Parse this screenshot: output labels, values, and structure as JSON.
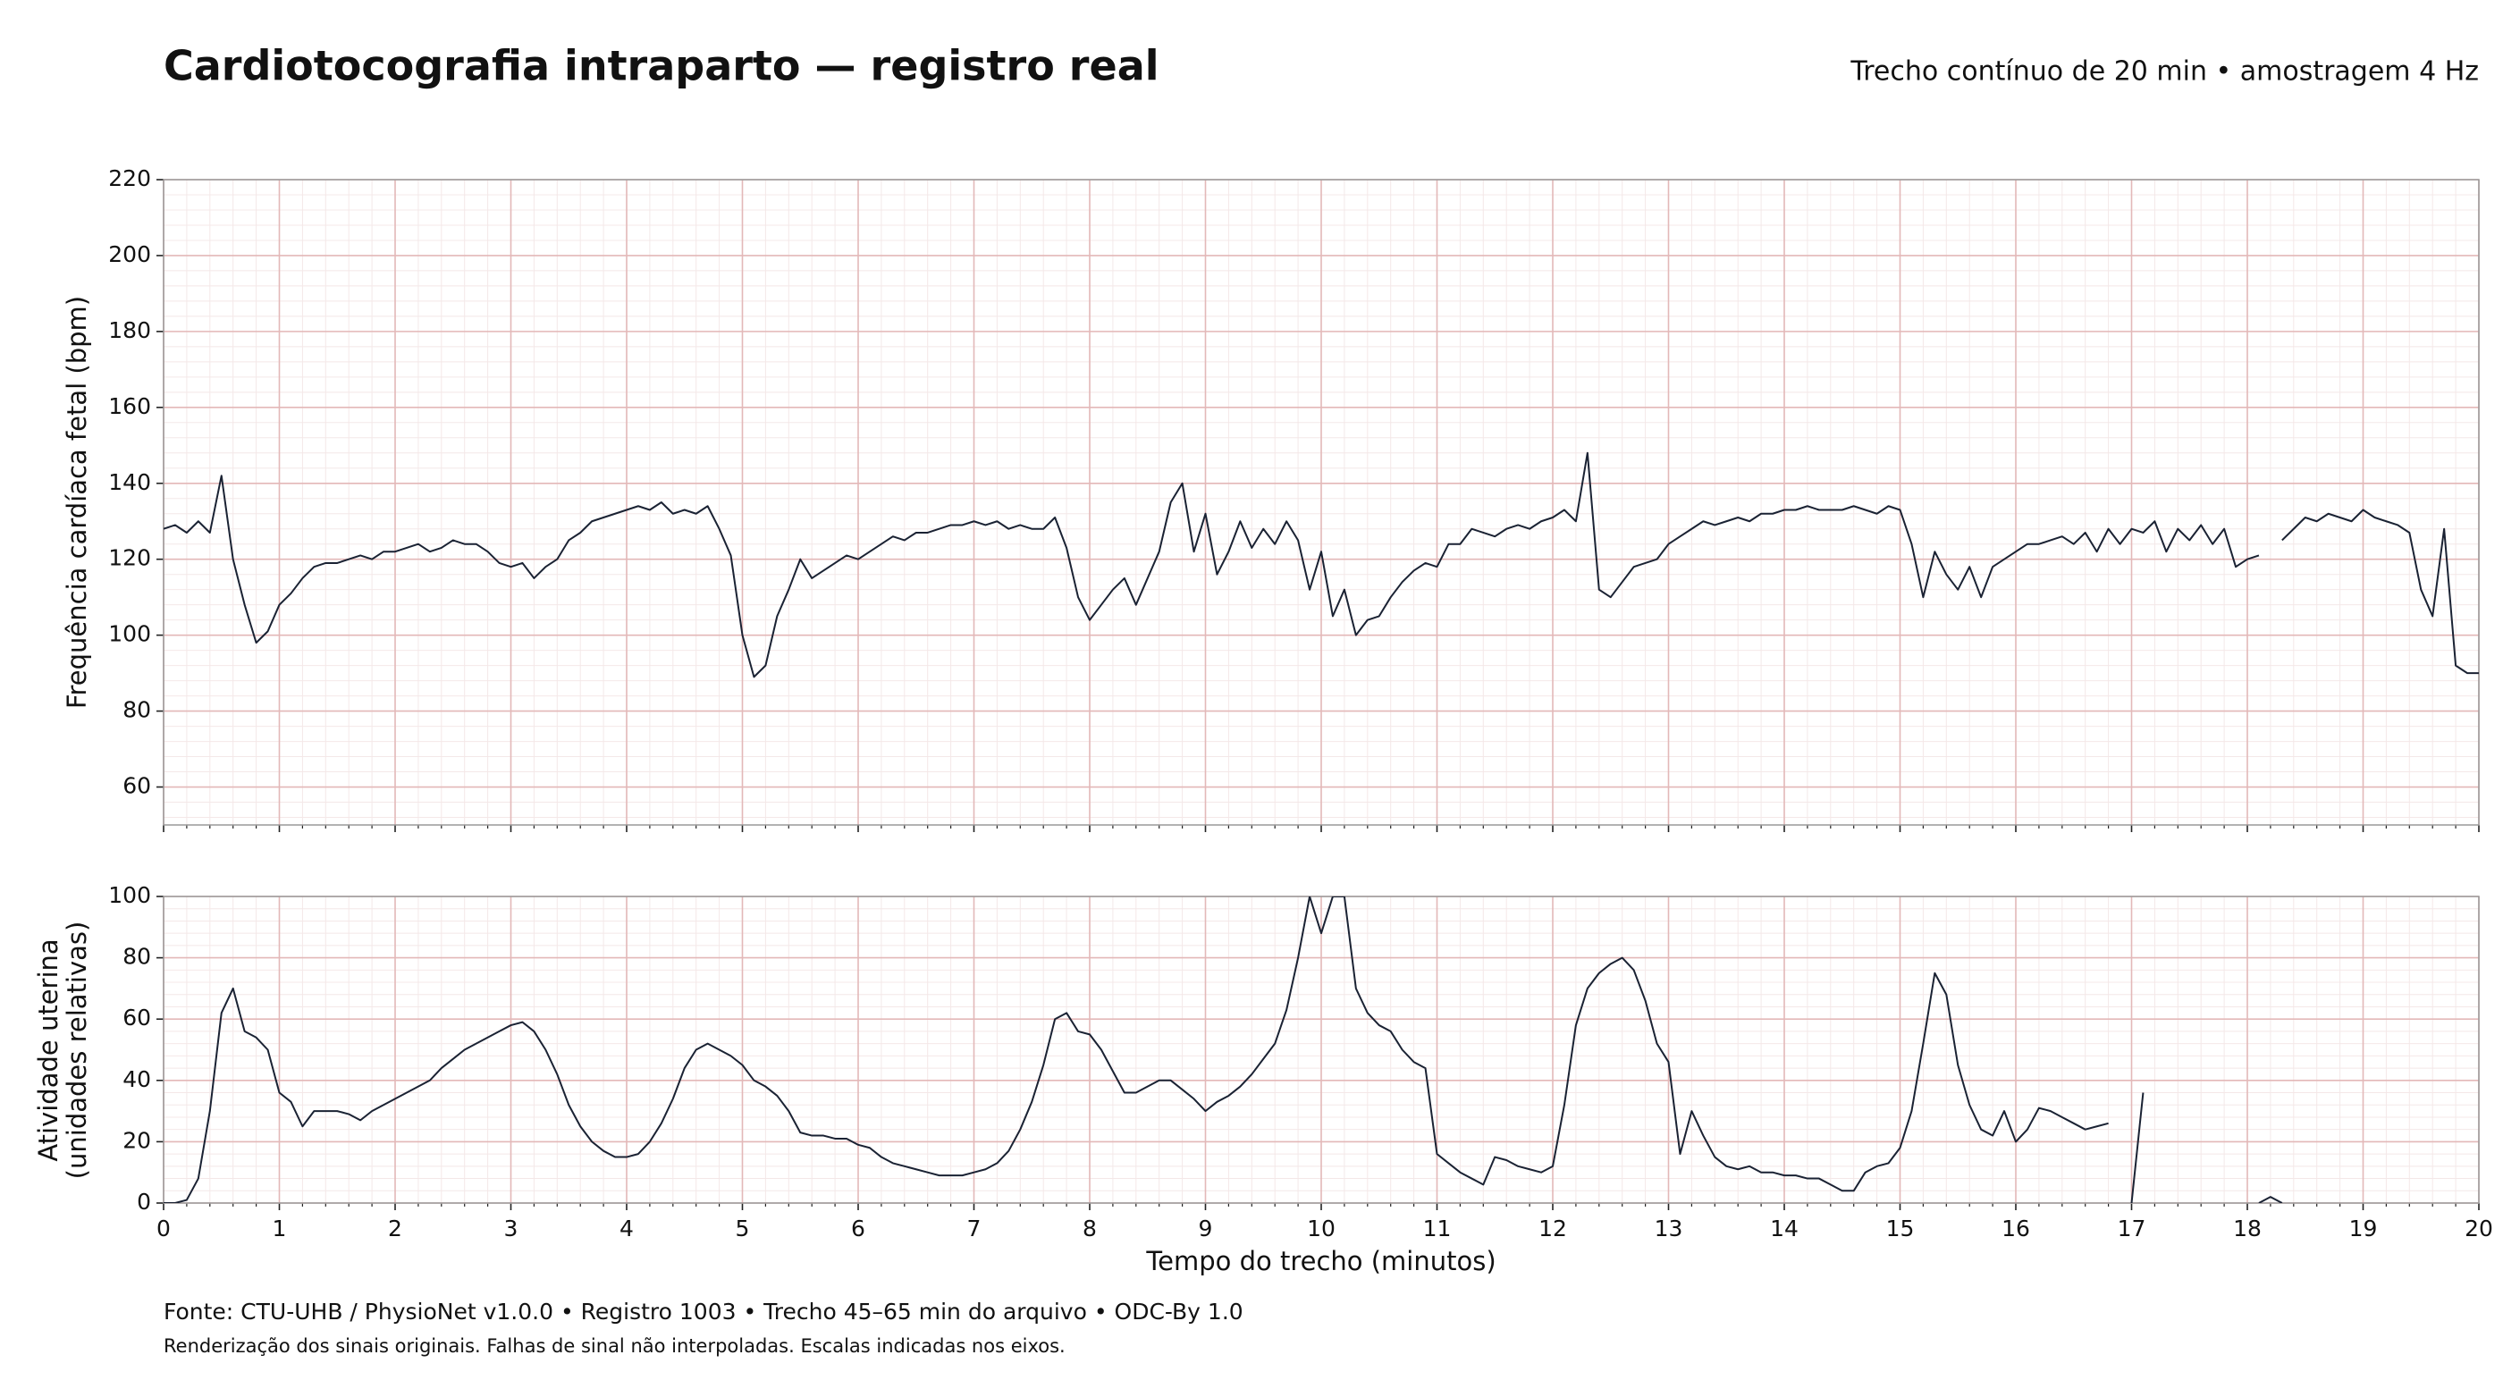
{
  "chart_data": [
    {
      "type": "line",
      "title": "Cardiotocografia intraparto — registro real",
      "subtitle": "Trecho contínuo de 20 min • amostragem 4 Hz",
      "y_label": "Frequência cardíaca fetal (bpm)",
      "color": "#1a2233",
      "grid": true,
      "source": "Fonte: CTU-UHB / PhysioNet v1.0.0 • Registro 1003 • Trecho 45–65 min do arquivo • ODC-By 1.0",
      "note": "Renderização dos sinais originais. Falhas de sinal não interpoladas. Escalas indicadas nos eixos.",
      "xlim": [
        0,
        20
      ],
      "xticks": [
        0,
        1,
        2,
        3,
        4,
        5,
        6,
        7,
        8,
        9,
        10,
        11,
        12,
        13,
        14,
        15,
        16,
        17,
        18,
        19,
        20
      ],
      "ylim": [
        50,
        220
      ],
      "yticks": [
        60,
        80,
        100,
        120,
        140,
        160,
        180,
        200,
        220
      ],
      "x": [
        0,
        0.1,
        0.2,
        0.3,
        0.4,
        0.5,
        0.6,
        0.7,
        0.8,
        0.9,
        1,
        1.1,
        1.2,
        1.3,
        1.4,
        1.5,
        1.6,
        1.7,
        1.8,
        1.9,
        2,
        2.1,
        2.2,
        2.3,
        2.4,
        2.5,
        2.6,
        2.7,
        2.8,
        2.9,
        3,
        3.1,
        3.2,
        3.3,
        3.4,
        3.5,
        3.6,
        3.7,
        3.8,
        3.9,
        4,
        4.1,
        4.2,
        4.3,
        4.4,
        4.5,
        4.6,
        4.7,
        4.8,
        4.9,
        5,
        5.1,
        5.2,
        5.3,
        5.4,
        5.5,
        5.6,
        5.7,
        5.8,
        5.9,
        6,
        6.1,
        6.2,
        6.3,
        6.4,
        6.5,
        6.6,
        6.7,
        6.8,
        6.9,
        7,
        7.1,
        7.2,
        7.3,
        7.4,
        7.5,
        7.6,
        7.7,
        7.8,
        7.9,
        8,
        8.1,
        8.2,
        8.3,
        8.4,
        8.5,
        8.6,
        8.7,
        8.8,
        8.9,
        9,
        9.1,
        9.2,
        9.3,
        9.4,
        9.5,
        9.6,
        9.7,
        9.8,
        9.9,
        10,
        10.1,
        10.2,
        10.3,
        10.4,
        10.5,
        10.6,
        10.7,
        10.8,
        10.9,
        11,
        11.1,
        11.2,
        11.3,
        11.4,
        11.5,
        11.6,
        11.7,
        11.8,
        11.9,
        12,
        12.1,
        12.2,
        12.3,
        12.4,
        12.5,
        12.6,
        12.7,
        12.8,
        12.9,
        13,
        13.1,
        13.2,
        13.3,
        13.4,
        13.5,
        13.6,
        13.7,
        13.8,
        13.9,
        14,
        14.1,
        14.2,
        14.3,
        14.4,
        14.5,
        14.6,
        14.7,
        14.8,
        14.9,
        15,
        15.1,
        15.2,
        15.3,
        15.4,
        15.5,
        15.6,
        15.7,
        15.8,
        15.9,
        16,
        16.1,
        16.2,
        16.3,
        16.4,
        16.5,
        16.6,
        16.7,
        16.8,
        16.9,
        17,
        17.1,
        17.2,
        17.3,
        17.4,
        17.5,
        17.6,
        17.7,
        17.8,
        17.9,
        18,
        18.1,
        18.2,
        18.3,
        18.4,
        18.5,
        18.6,
        18.7,
        18.8,
        18.9,
        19,
        19.1,
        19.2,
        19.3,
        19.4,
        19.5,
        19.6,
        19.7,
        19.8,
        19.9,
        20
      ],
      "values": [
        128,
        129,
        127,
        130,
        127,
        142,
        120,
        108,
        98,
        101,
        108,
        111,
        115,
        118,
        119,
        119,
        120,
        121,
        120,
        122,
        122,
        123,
        124,
        122,
        123,
        125,
        124,
        124,
        122,
        119,
        118,
        119,
        115,
        118,
        120,
        125,
        127,
        130,
        131,
        132,
        133,
        134,
        133,
        135,
        132,
        133,
        132,
        134,
        128,
        121,
        100,
        89,
        92,
        105,
        112,
        120,
        115,
        117,
        119,
        121,
        120,
        122,
        124,
        126,
        125,
        127,
        127,
        128,
        129,
        129,
        130,
        129,
        130,
        128,
        129,
        128,
        128,
        131,
        123,
        110,
        104,
        108,
        112,
        115,
        108,
        115,
        122,
        135,
        140,
        122,
        132,
        116,
        122,
        130,
        123,
        128,
        124,
        130,
        125,
        112,
        122,
        105,
        112,
        100,
        104,
        105,
        110,
        114,
        117,
        119,
        118,
        124,
        124,
        128,
        127,
        126,
        128,
        129,
        128,
        130,
        131,
        133,
        130,
        148,
        112,
        110,
        114,
        118,
        119,
        120,
        124,
        126,
        128,
        130,
        129,
        130,
        131,
        130,
        132,
        132,
        133,
        133,
        134,
        133,
        133,
        133,
        134,
        133,
        132,
        134,
        133,
        124,
        110,
        122,
        116,
        112,
        118,
        110,
        118,
        120,
        122,
        124,
        124,
        125,
        126,
        124,
        127,
        122,
        128,
        124,
        128,
        127,
        130,
        122,
        128,
        125,
        129,
        124,
        128,
        118,
        120,
        121,
        null,
        125,
        128,
        131,
        130,
        132,
        131,
        130,
        133,
        131,
        130,
        129,
        127,
        112,
        105,
        128,
        92,
        90,
        90
      ]
    },
    {
      "type": "line",
      "y_label": [
        "Atividade uterina",
        "(unidades relativas)"
      ],
      "x_label": "Tempo do trecho (minutos)",
      "color": "#1a2233",
      "grid": true,
      "xlim": [
        0,
        20
      ],
      "xticks": [
        0,
        1,
        2,
        3,
        4,
        5,
        6,
        7,
        8,
        9,
        10,
        11,
        12,
        13,
        14,
        15,
        16,
        17,
        18,
        19,
        20
      ],
      "ylim": [
        0,
        100
      ],
      "yticks": [
        0,
        20,
        40,
        60,
        80,
        100
      ],
      "x": [
        0,
        0.1,
        0.2,
        0.3,
        0.4,
        0.5,
        0.6,
        0.7,
        0.8,
        0.9,
        1,
        1.1,
        1.2,
        1.3,
        1.4,
        1.5,
        1.6,
        1.7,
        1.8,
        1.9,
        2,
        2.1,
        2.2,
        2.3,
        2.4,
        2.5,
        2.6,
        2.7,
        2.8,
        2.9,
        3,
        3.1,
        3.2,
        3.3,
        3.4,
        3.5,
        3.6,
        3.7,
        3.8,
        3.9,
        4,
        4.1,
        4.2,
        4.3,
        4.4,
        4.5,
        4.6,
        4.7,
        4.8,
        4.9,
        5,
        5.1,
        5.2,
        5.3,
        5.4,
        5.5,
        5.6,
        5.7,
        5.8,
        5.9,
        6,
        6.1,
        6.2,
        6.3,
        6.4,
        6.5,
        6.6,
        6.7,
        6.8,
        6.9,
        7,
        7.1,
        7.2,
        7.3,
        7.4,
        7.5,
        7.6,
        7.7,
        7.8,
        7.9,
        8,
        8.1,
        8.2,
        8.3,
        8.4,
        8.5,
        8.6,
        8.7,
        8.8,
        8.9,
        9,
        9.1,
        9.2,
        9.3,
        9.4,
        9.5,
        9.6,
        9.7,
        9.8,
        9.9,
        10,
        10.1,
        10.2,
        10.3,
        10.4,
        10.5,
        10.6,
        10.7,
        10.8,
        10.9,
        11,
        11.1,
        11.2,
        11.3,
        11.4,
        11.5,
        11.6,
        11.7,
        11.8,
        11.9,
        12,
        12.1,
        12.2,
        12.3,
        12.4,
        12.5,
        12.6,
        12.7,
        12.8,
        12.9,
        13,
        13.1,
        13.2,
        13.3,
        13.4,
        13.5,
        13.6,
        13.7,
        13.8,
        13.9,
        14,
        14.1,
        14.2,
        14.3,
        14.4,
        14.5,
        14.6,
        14.7,
        14.8,
        14.9,
        15,
        15.1,
        15.2,
        15.3,
        15.4,
        15.5,
        15.6,
        15.7,
        15.8,
        15.9,
        16,
        16.1,
        16.2,
        16.3,
        16.4,
        16.5,
        16.6,
        16.7,
        16.8,
        16.9,
        17,
        17.1,
        17.2,
        17.3,
        17.4,
        17.5,
        17.6,
        17.7,
        17.8,
        17.9,
        18,
        18.1,
        18.2,
        18.3,
        18.4,
        18.5,
        18.6,
        18.7,
        18.8,
        18.9,
        19,
        19.1,
        19.2,
        19.3,
        19.4,
        19.5,
        19.6,
        19.7,
        19.8,
        19.9,
        20
      ],
      "values": [
        0,
        0,
        1,
        8,
        30,
        62,
        70,
        56,
        54,
        50,
        36,
        33,
        25,
        30,
        30,
        30,
        29,
        27,
        30,
        32,
        34,
        36,
        38,
        40,
        44,
        47,
        50,
        52,
        54,
        56,
        58,
        59,
        56,
        50,
        42,
        32,
        25,
        20,
        17,
        15,
        15,
        16,
        20,
        26,
        34,
        44,
        50,
        52,
        50,
        48,
        45,
        40,
        38,
        35,
        30,
        23,
        22,
        22,
        21,
        21,
        19,
        18,
        15,
        13,
        12,
        11,
        10,
        9,
        9,
        9,
        10,
        11,
        13,
        17,
        24,
        33,
        45,
        60,
        62,
        56,
        55,
        50,
        43,
        36,
        36,
        38,
        40,
        40,
        37,
        34,
        30,
        33,
        35,
        38,
        42,
        47,
        52,
        63,
        80,
        100,
        88,
        100,
        100,
        70,
        62,
        58,
        56,
        50,
        46,
        44,
        16,
        13,
        10,
        8,
        6,
        15,
        14,
        12,
        11,
        10,
        12,
        32,
        58,
        70,
        75,
        78,
        80,
        76,
        66,
        52,
        46,
        16,
        30,
        22,
        15,
        12,
        11,
        12,
        10,
        10,
        9,
        9,
        8,
        8,
        6,
        4,
        4,
        10,
        12,
        13,
        18,
        30,
        52,
        75,
        68,
        45,
        32,
        24,
        22,
        30,
        20,
        24,
        31,
        30,
        28,
        26,
        24,
        25,
        26,
        null,
        0,
        36,
        null,
        null,
        null,
        null,
        null,
        null,
        null,
        null,
        null,
        0,
        2,
        0,
        null,
        null,
        null,
        null,
        null,
        null,
        null,
        null,
        null,
        null,
        null,
        null,
        null,
        null,
        null,
        null,
        null
      ]
    }
  ]
}
